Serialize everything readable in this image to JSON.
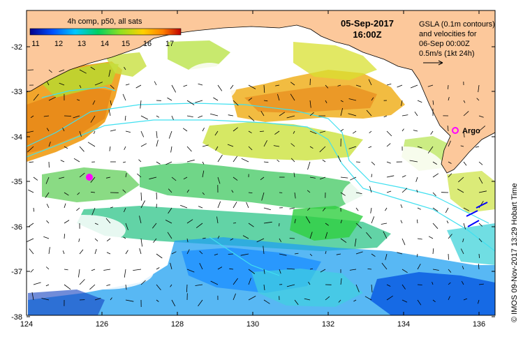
{
  "colorbar": {
    "title": "4h comp, p50, all sats",
    "ticks": [
      "11",
      "12",
      "13",
      "14",
      "15",
      "16",
      "17"
    ],
    "colors": [
      "#00008c",
      "#0050ff",
      "#00c8ff",
      "#00d060",
      "#90e020",
      "#ffd000",
      "#ff8000",
      "#c00000"
    ]
  },
  "header": {
    "date": "05-Sep-2017",
    "time": "16:00Z"
  },
  "info": {
    "line1": "GSLA (0.1m contours)",
    "line2": "and velocities for",
    "line3": "06-Sep 00:00Z",
    "line4": "0.5m/s (1kt 24h)"
  },
  "argo_label": "Argo",
  "credit": "© IMOS 09-Nov-2017 13:29 Hobart Time",
  "axes": {
    "lon_labels": [
      "124",
      "126",
      "128",
      "130",
      "132",
      "134",
      "136"
    ],
    "lat_labels": [
      "-32",
      "-33",
      "-34",
      "-35",
      "-36",
      "-37",
      "-38"
    ],
    "lon_range": [
      124,
      136.5
    ],
    "lat_range": [
      -31.3,
      -38.1
    ]
  },
  "colors": {
    "land": "#fcc89b",
    "contour": "#40e0f0",
    "argo": "#ff00ff",
    "arrow": "#000000"
  }
}
